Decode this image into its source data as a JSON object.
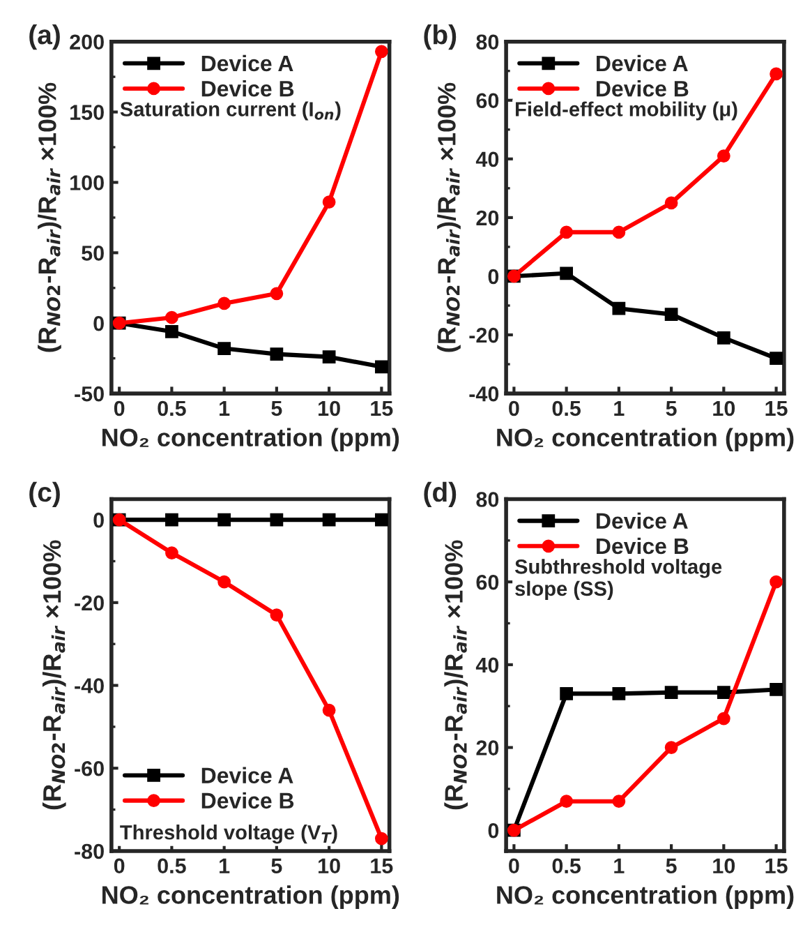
{
  "chart_data": [
    {
      "type": "line",
      "title": "(a)",
      "xlabel": "NO₂ concentration (ppm)",
      "ylabel": "(R$_{NO2}$-R$_{air}$)/R$_{air}$ ×100%",
      "categories": [
        "0",
        "0.5",
        "1",
        "5",
        "10",
        "15"
      ],
      "series": [
        {
          "name": "Device A",
          "color": "#000000",
          "marker": "square",
          "values": [
            0,
            -6,
            -18,
            -22,
            -24,
            -31
          ]
        },
        {
          "name": "Device B",
          "color": "#ff0000",
          "marker": "circle",
          "values": [
            0,
            4,
            14,
            21,
            86,
            193
          ]
        }
      ],
      "ylim": [
        -50,
        200
      ],
      "yticks": [
        -50,
        0,
        50,
        100,
        150,
        200
      ],
      "legend": "top left",
      "grid": false,
      "line_style": "solid",
      "annotations": [
        "Saturation current (I$_{on}$)"
      ]
    },
    {
      "type": "line",
      "title": "(b)",
      "xlabel": "NO₂ concentration (ppm)",
      "ylabel": "(R$_{NO2}$-R$_{air}$)/R$_{air}$ ×100%",
      "categories": [
        "0",
        "0.5",
        "1",
        "5",
        "10",
        "15"
      ],
      "series": [
        {
          "name": "Device A",
          "color": "#000000",
          "marker": "square",
          "values": [
            0,
            1,
            -11,
            -13,
            -21,
            -28
          ]
        },
        {
          "name": "Device B",
          "color": "#ff0000",
          "marker": "circle",
          "values": [
            0,
            15,
            15,
            25,
            41,
            69
          ]
        }
      ],
      "ylim": [
        -40,
        80
      ],
      "yticks": [
        -40,
        -20,
        0,
        20,
        40,
        60,
        80
      ],
      "legend": "top left",
      "grid": false,
      "line_style": "solid",
      "annotations": [
        "Field-effect mobility (μ)"
      ]
    },
    {
      "type": "line",
      "title": "(c)",
      "xlabel": "NO₂ concentration (ppm)",
      "ylabel": "(R$_{NO2}$-R$_{air}$)/R$_{air}$ ×100%",
      "categories": [
        "0",
        "0.5",
        "1",
        "5",
        "10",
        "15"
      ],
      "series": [
        {
          "name": "Device A",
          "color": "#000000",
          "marker": "square",
          "values": [
            0,
            0,
            0,
            0,
            0,
            0
          ]
        },
        {
          "name": "Device B",
          "color": "#ff0000",
          "marker": "circle",
          "values": [
            0,
            -8,
            -15,
            -23,
            -46,
            -77
          ]
        }
      ],
      "ylim": [
        -80,
        5
      ],
      "yticks": [
        -80,
        -60,
        -40,
        -20,
        0
      ],
      "legend": "bottom left",
      "grid": false,
      "line_style": "solid",
      "annotations": [
        "Threshold voltage (V$_{T}$)"
      ]
    },
    {
      "type": "line",
      "title": "(d)",
      "xlabel": "NO₂ concentration (ppm)",
      "ylabel": "(R$_{NO2}$-R$_{air}$)/R$_{air}$ ×100%",
      "categories": [
        "0",
        "0.5",
        "1",
        "5",
        "10",
        "15"
      ],
      "series": [
        {
          "name": "Device A",
          "color": "#000000",
          "marker": "square",
          "values": [
            0,
            33,
            33,
            33.3,
            33.3,
            34
          ]
        },
        {
          "name": "Device B",
          "color": "#ff0000",
          "marker": "circle",
          "values": [
            0,
            7,
            7,
            20,
            27,
            60
          ]
        }
      ],
      "ylim": [
        -5,
        80
      ],
      "yticks": [
        0,
        20,
        40,
        60,
        80
      ],
      "legend": "top left",
      "grid": false,
      "line_style": "solid",
      "annotations": [
        "Subthreshold voltage\nslope (SS)"
      ]
    }
  ]
}
